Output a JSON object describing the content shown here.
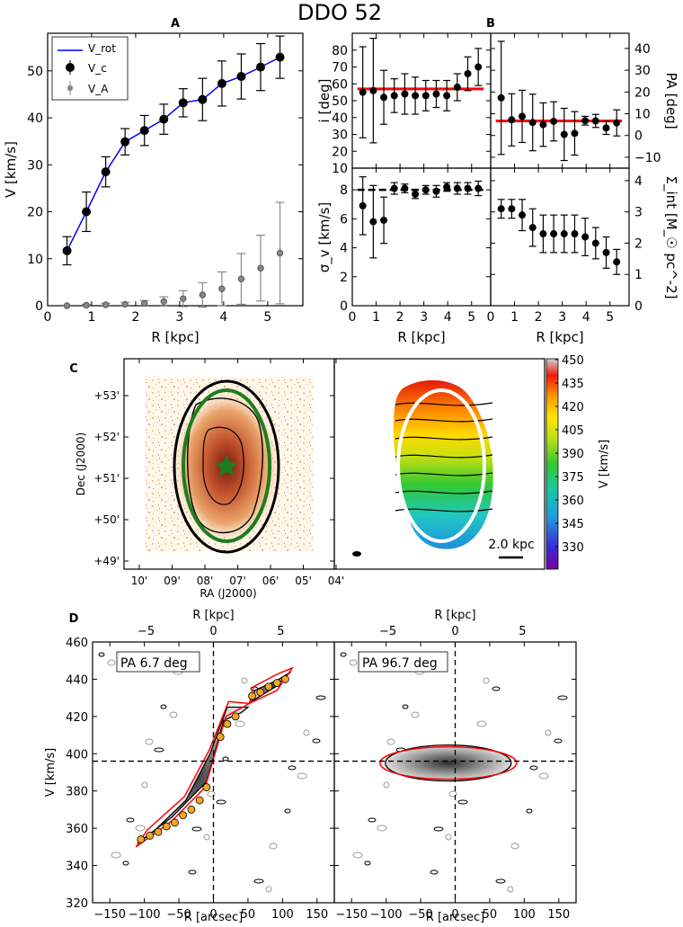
{
  "title": "DDO 52",
  "colors": {
    "vrot": "#0000ff",
    "fit": "#ff0000",
    "va": "#888888",
    "vc": "#000000",
    "ellipse_optical": "#1e7d1e",
    "ellipse_velfield": "#ffffff",
    "orange_points": "#f5a623"
  },
  "chart_data": [
    {
      "id": "A",
      "panel_label": "A",
      "type": "line",
      "xlabel": "R [kpc]",
      "ylabel": "V [km/s]",
      "xlim": [
        0,
        5.8
      ],
      "ylim": [
        0,
        58
      ],
      "xticks": [
        "0",
        "1",
        "2",
        "3",
        "4",
        "5"
      ],
      "yticks": [
        "0",
        "10",
        "20",
        "30",
        "40",
        "50"
      ],
      "legend": [
        "V_rot",
        "V_c",
        "V_A"
      ],
      "legend_placement": "upper-left",
      "series": [
        {
          "name": "V_rot",
          "kind": "line",
          "x": [
            0.44,
            0.88,
            1.32,
            1.76,
            2.2,
            2.64,
            3.08,
            3.52,
            3.96,
            4.4,
            4.84,
            5.28
          ],
          "y": [
            11.7,
            20.0,
            28.5,
            34.9,
            37.3,
            39.7,
            43.2,
            43.9,
            47.3,
            48.8,
            50.8,
            52.9
          ]
        },
        {
          "name": "V_c",
          "kind": "errorbar",
          "x": [
            0.44,
            0.88,
            1.32,
            1.76,
            2.2,
            2.64,
            3.08,
            3.52,
            3.96,
            4.4,
            4.84,
            5.28
          ],
          "y": [
            11.7,
            20.0,
            28.5,
            34.9,
            37.3,
            39.7,
            43.2,
            43.9,
            47.3,
            48.8,
            50.8,
            52.9
          ],
          "err": [
            3.0,
            4.2,
            3.2,
            2.8,
            3.2,
            3.2,
            3.0,
            4.5,
            4.8,
            4.8,
            5.0,
            4.5
          ]
        },
        {
          "name": "V_A",
          "kind": "errorbar",
          "x": [
            0.44,
            0.88,
            1.32,
            1.76,
            2.2,
            2.64,
            3.08,
            3.52,
            3.96,
            4.4,
            4.84,
            5.28
          ],
          "y": [
            0.0,
            0.1,
            0.2,
            0.3,
            0.5,
            0.9,
            1.5,
            2.3,
            3.6,
            5.7,
            8.0,
            11.2
          ],
          "err": [
            0.1,
            0.2,
            0.3,
            0.4,
            0.6,
            1.0,
            1.7,
            2.6,
            3.6,
            5.4,
            7.0,
            10.8
          ]
        }
      ]
    },
    {
      "id": "B_i",
      "panel_label": "B",
      "type": "scatter",
      "ylabel": "i [deg]",
      "xlim": [
        0,
        5.8
      ],
      "ylim": [
        10,
        90
      ],
      "yticks": [
        "10",
        "20",
        "30",
        "40",
        "50",
        "60",
        "70",
        "80"
      ],
      "fit_value": 57,
      "series": [
        {
          "name": "i",
          "x": [
            0.44,
            0.88,
            1.32,
            1.76,
            2.2,
            2.64,
            3.08,
            3.52,
            3.96,
            4.4,
            4.84,
            5.28
          ],
          "y": [
            55,
            56,
            52,
            53,
            54,
            53,
            53,
            54,
            53,
            58,
            66,
            70
          ],
          "err": [
            27,
            31,
            16,
            10,
            12,
            11,
            9,
            8,
            9,
            8,
            10,
            11
          ]
        }
      ]
    },
    {
      "id": "B_pa",
      "type": "scatter",
      "ylabel": "PA [deg]",
      "xlim": [
        0,
        5.8
      ],
      "ylim": [
        -15,
        47
      ],
      "yticks": [
        "−10",
        "0",
        "10",
        "20",
        "30",
        "40"
      ],
      "fit_value": 6.7,
      "series": [
        {
          "name": "PA",
          "x": [
            0.44,
            0.88,
            1.32,
            1.76,
            2.2,
            2.64,
            3.08,
            3.52,
            3.96,
            4.4,
            4.84,
            5.28
          ],
          "y": [
            17.3,
            7.2,
            8.8,
            6.0,
            5.0,
            6.5,
            0.5,
            1.0,
            6.8,
            6.7,
            3.5,
            5.8
          ],
          "err": [
            26,
            12,
            12,
            13,
            10,
            9,
            12,
            10,
            2,
            3,
            3,
            6
          ]
        }
      ]
    },
    {
      "id": "B_sigma",
      "type": "scatter",
      "xlabel": "R [kpc]",
      "ylabel": "σ_v [km/s]",
      "xlim": [
        0,
        5.8
      ],
      "ylim": [
        0,
        9.5
      ],
      "xticks": [
        "0",
        "1",
        "2",
        "3",
        "4",
        "5"
      ],
      "yticks": [
        "0",
        "2",
        "4",
        "6",
        "8"
      ],
      "fit_value": 8.0,
      "series": [
        {
          "name": "σ_v",
          "x": [
            0.44,
            0.88,
            1.32,
            1.76,
            2.2,
            2.64,
            3.08,
            3.52,
            3.96,
            4.4,
            4.84,
            5.28
          ],
          "y": [
            6.9,
            5.8,
            5.9,
            8.1,
            8.1,
            7.7,
            8.0,
            7.9,
            8.2,
            8.1,
            8.1,
            8.1
          ],
          "err": [
            2.0,
            2.5,
            1.6,
            0.4,
            0.3,
            0.3,
            0.3,
            0.4,
            0.3,
            0.4,
            0.4,
            0.5
          ]
        }
      ]
    },
    {
      "id": "B_sigma_int",
      "type": "scatter",
      "xlabel": "R [kpc]",
      "ylabel": "Σ_int [M_☉ pc^-2]",
      "xlim": [
        0,
        5.8
      ],
      "ylim": [
        0,
        4.4
      ],
      "xticks": [
        "0",
        "1",
        "2",
        "3",
        "4",
        "5"
      ],
      "yticks": [
        "0",
        "1",
        "2",
        "3",
        "4"
      ],
      "series": [
        {
          "name": "Σ_int",
          "x": [
            0.44,
            0.88,
            1.32,
            1.76,
            2.2,
            2.64,
            3.08,
            3.52,
            3.96,
            4.4,
            4.84,
            5.28
          ],
          "y": [
            3.1,
            3.1,
            2.9,
            2.5,
            2.3,
            2.3,
            2.3,
            2.3,
            2.2,
            2.0,
            1.7,
            1.4
          ],
          "err": [
            0.3,
            0.3,
            0.5,
            0.6,
            0.6,
            0.6,
            0.6,
            0.6,
            0.6,
            0.5,
            0.5,
            0.4
          ]
        }
      ]
    },
    {
      "id": "C_image",
      "panel_label": "C",
      "type": "heatmap",
      "xlabel": "RA (J2000)",
      "ylabel": "Dec (J2000)",
      "xticks": [
        "10'",
        "09'",
        "08'",
        "07'",
        "06'",
        "05'",
        "04'"
      ],
      "yticks": [
        "+53'",
        "+52'",
        "+51'",
        "+50'",
        "+49'"
      ]
    },
    {
      "id": "C_velfield",
      "type": "heatmap",
      "colorbar_label": "V [km/s]",
      "colorbar_ticks": [
        "450",
        "435",
        "420",
        "405",
        "390",
        "375",
        "360",
        "345",
        "330"
      ],
      "scale_bar": "2.0 kpc"
    },
    {
      "id": "D_major",
      "panel_label": "D",
      "type": "heatmap",
      "annotation": "PA 6.7 deg",
      "xlabel": "R [arcsec]",
      "top_xlabel": "R [kpc]",
      "ylabel": "V [km/s]",
      "xlim": [
        -175,
        175
      ],
      "ylim": [
        320,
        460
      ],
      "xticks": [
        "−150",
        "−100",
        "−50",
        "0",
        "50",
        "100",
        "150"
      ],
      "top_xticks": [
        "−5",
        "0",
        "5"
      ],
      "yticks": [
        "320",
        "340",
        "360",
        "380",
        "400",
        "420",
        "440",
        "460"
      ],
      "systemic_velocity": 396,
      "rotation_points": {
        "x": [
          -105,
          -92,
          -80,
          -68,
          -56,
          -44,
          -32,
          -20,
          -10,
          10,
          20,
          32,
          56,
          68,
          80,
          92,
          104
        ],
        "y": [
          354,
          356,
          358,
          361,
          363,
          367,
          370,
          375,
          382,
          409,
          416,
          420,
          431,
          433,
          436,
          438,
          440
        ]
      }
    },
    {
      "id": "D_minor",
      "type": "heatmap",
      "annotation": "PA 96.7 deg",
      "xlabel": "R [arcsec]",
      "top_xlabel": "R [kpc]",
      "xlim": [
        -175,
        175
      ],
      "ylim": [
        320,
        460
      ],
      "xticks": [
        "−150",
        "−100",
        "−50",
        "0",
        "50",
        "100",
        "150"
      ],
      "top_xticks": [
        "−5",
        "0",
        "5"
      ],
      "systemic_velocity": 396
    }
  ]
}
